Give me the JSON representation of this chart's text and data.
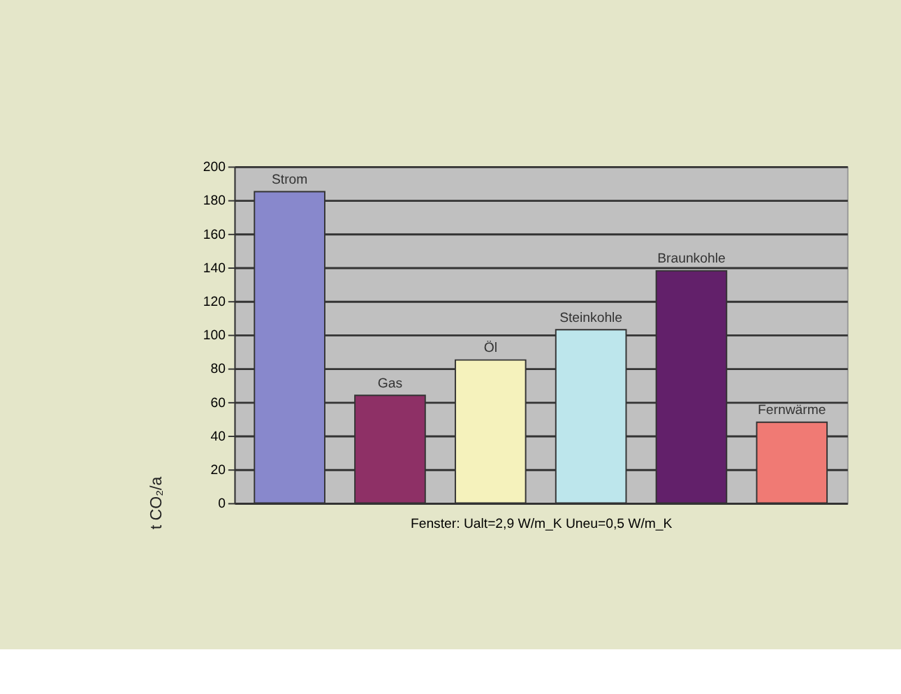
{
  "chart_data": {
    "type": "bar",
    "categories": [
      "Strom",
      "Gas",
      "Öl",
      "Steinkohle",
      "Braunkohle",
      "Fernwärme"
    ],
    "values": [
      185,
      64,
      85,
      103,
      138,
      48
    ],
    "colors": [
      "#8888cc",
      "#8e3066",
      "#f5f2bc",
      "#bde6ec",
      "#62206a",
      "#f07a74"
    ],
    "xlabel": "Fenster: Ualt=2,9 W/m_K     Uneu=0,5 W/m_K",
    "ylabel": "t CO₂/a",
    "ylim": [
      0,
      200
    ],
    "yticks": [
      0,
      20,
      40,
      60,
      80,
      100,
      120,
      140,
      160,
      180,
      200
    ],
    "grid": "y"
  }
}
